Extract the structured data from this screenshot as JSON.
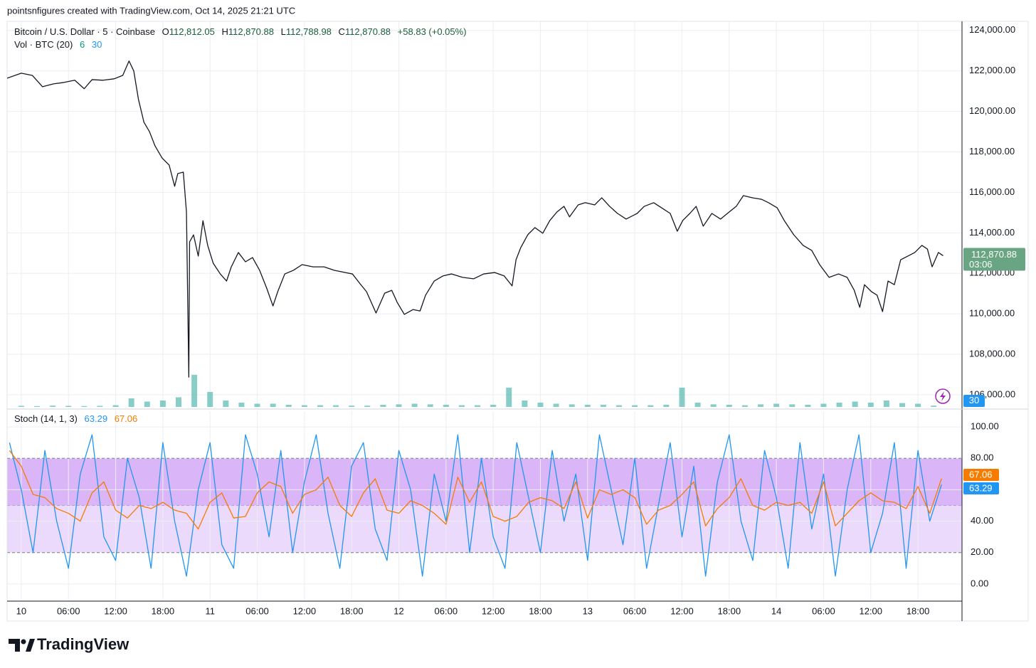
{
  "header": "pointsnfigures created with TradingView.com, Oct 14, 2025 21:21 UTC",
  "footer_logo": "TradingView",
  "chart_data": {
    "type": "line",
    "x": [
      -1.8,
      0,
      1.4,
      2.7,
      4.1,
      5.4,
      6.8,
      8.0,
      9.0,
      10.4,
      11.8,
      12.9,
      13.7,
      14.3,
      14.9,
      15.6,
      16.3,
      17.0,
      17.9,
      18.8,
      19.5,
      19.9,
      20.6,
      21.0,
      21.3,
      21.4,
      21.9,
      22.5,
      23.1,
      23.7,
      24.4,
      25.3,
      26.1,
      26.7,
      27.6,
      28.5,
      29.4,
      30.3,
      31.2,
      32.0,
      32.6,
      33.5,
      34.6,
      35.7,
      37.1,
      38.5,
      39.8,
      41.2,
      42.1,
      43.0,
      43.9,
      45.1,
      46.2,
      47.1,
      47.8,
      48.7,
      49.8,
      50.7,
      51.4,
      52.5,
      53.6,
      54.7,
      56.1,
      57.5,
      58.8,
      60.2,
      61.4,
      62.4,
      62.9,
      63.5,
      64.4,
      65.3,
      66.3,
      67.2,
      68.1,
      69.0,
      69.7,
      70.8,
      71.7,
      72.9,
      73.8,
      74.8,
      75.8,
      76.9,
      78.3,
      79.2,
      80.4,
      81.4,
      82.5,
      83.4,
      84.1,
      85.0,
      85.8,
      86.7,
      87.8,
      88.9,
      90.0,
      90.9,
      91.8,
      93.0,
      94.1,
      95.0,
      96.1,
      97.0,
      98.2,
      99.4,
      100.5,
      101.5,
      102.7,
      103.9,
      105.0,
      105.9,
      106.6,
      107.2,
      108.1,
      108.8,
      109.5,
      110.2,
      111.0,
      111.8,
      112.7,
      113.6,
      114.5,
      115.2,
      115.8,
      116.6,
      117.2
    ],
    "xlim": [
      -1.8,
      119.6
    ],
    "xticks": [
      {
        "value": 0,
        "label": "10"
      },
      {
        "value": 6,
        "label": "06:00"
      },
      {
        "value": 12,
        "label": "12:00"
      },
      {
        "value": 18,
        "label": "18:00"
      },
      {
        "value": 24,
        "label": "11"
      },
      {
        "value": 30,
        "label": "06:00"
      },
      {
        "value": 36,
        "label": "12:00"
      },
      {
        "value": 42,
        "label": "18:00"
      },
      {
        "value": 48,
        "label": "12"
      },
      {
        "value": 54,
        "label": "06:00"
      },
      {
        "value": 60,
        "label": "12:00"
      },
      {
        "value": 66,
        "label": "18:00"
      },
      {
        "value": 72,
        "label": "13"
      },
      {
        "value": 78,
        "label": "06:00"
      },
      {
        "value": 84,
        "label": "12:00"
      },
      {
        "value": 90,
        "label": "18:00"
      },
      {
        "value": 96,
        "label": "14"
      },
      {
        "value": 102,
        "label": "06:00"
      },
      {
        "value": 108,
        "label": "12:00"
      },
      {
        "value": 114,
        "label": "18:00"
      }
    ],
    "series": [
      {
        "name": "Bitcoin / U.S. Dollar · 5 · Coinbase",
        "color": "#131722",
        "values": [
          121640,
          121890,
          121780,
          121220,
          121360,
          121430,
          121540,
          121120,
          121570,
          121540,
          121610,
          121780,
          122490,
          122000,
          120590,
          119460,
          119000,
          118300,
          117700,
          117350,
          116300,
          116930,
          117000,
          115030,
          106870,
          113550,
          113900,
          112850,
          114600,
          113380,
          112500,
          111970,
          111620,
          112320,
          113030,
          112570,
          112780,
          112150,
          111270,
          110390,
          111090,
          111970,
          112150,
          112430,
          112320,
          112320,
          112150,
          112040,
          111970,
          111520,
          111090,
          110040,
          111020,
          111160,
          110560,
          109970,
          110210,
          110140,
          110920,
          111620,
          111870,
          111970,
          111800,
          111730,
          111970,
          112040,
          111870,
          111380,
          112670,
          113270,
          113910,
          114260,
          113980,
          114610,
          115030,
          115310,
          114790,
          115380,
          115490,
          115380,
          115730,
          115310,
          114960,
          114680,
          114960,
          115310,
          115490,
          115240,
          114960,
          114080,
          114610,
          114960,
          115310,
          114330,
          114960,
          114680,
          115030,
          115310,
          115840,
          115730,
          115660,
          115490,
          115240,
          114610,
          113910,
          113380,
          113130,
          112430,
          111800,
          111970,
          111800,
          111160,
          110320,
          111440,
          111090,
          110920,
          110110,
          111620,
          111440,
          112670,
          112850,
          113030,
          113380,
          113200,
          112320,
          113030,
          112870.88
        ]
      }
    ],
    "ylim": [
      105400,
      124450
    ],
    "yticks": [
      {
        "value": 106000,
        "label": "106,000.00"
      },
      {
        "value": 108000,
        "label": "108,000.00"
      },
      {
        "value": 110000,
        "label": "110,000.00"
      },
      {
        "value": 112000,
        "label": "112,000.00"
      },
      {
        "value": 114000,
        "label": "114,000.00"
      },
      {
        "value": 116000,
        "label": "116,000.00"
      },
      {
        "value": 118000,
        "label": "118,000.00"
      },
      {
        "value": 120000,
        "label": "120,000.00"
      },
      {
        "value": 122000,
        "label": "122,000.00"
      },
      {
        "value": 124000,
        "label": "124,000.00"
      }
    ],
    "grid": true,
    "ohlc": [
      [
        "O",
        "112,812.05"
      ],
      [
        "H",
        "112,870.88"
      ],
      [
        "L",
        "112,788.98"
      ],
      [
        "C",
        "112,870.88"
      ]
    ],
    "change": "+58.83 (+0.05%)",
    "countdown": "03:06",
    "last_price_color": "#6aa583",
    "volume": {
      "name": "Vol · BTC (20)",
      "type": "bar",
      "x": [
        0,
        2,
        4,
        6,
        8,
        10,
        12,
        14,
        16,
        18,
        20,
        22,
        24,
        26,
        28,
        30,
        32,
        34,
        36,
        38,
        40,
        42,
        44,
        46,
        48,
        50,
        52,
        54,
        56,
        58,
        60,
        62,
        64,
        66,
        68,
        70,
        72,
        74,
        76,
        78,
        80,
        82,
        84,
        86,
        88,
        90,
        92,
        94,
        96,
        98,
        100,
        102,
        104,
        106,
        108,
        110,
        112,
        114,
        116
      ],
      "values": [
        5,
        4,
        6,
        5,
        4,
        5,
        8,
        40,
        25,
        30,
        45,
        150,
        70,
        30,
        20,
        15,
        15,
        10,
        8,
        8,
        8,
        6,
        6,
        10,
        12,
        15,
        12,
        10,
        8,
        8,
        10,
        90,
        30,
        20,
        15,
        12,
        10,
        10,
        8,
        8,
        8,
        10,
        90,
        20,
        12,
        10,
        8,
        12,
        15,
        12,
        10,
        15,
        20,
        25,
        20,
        30,
        18,
        15,
        6
      ],
      "color": "#26a69a",
      "ylim": [
        0,
        1800
      ],
      "ma": 30,
      "ma_color": "#2196f3"
    },
    "stoch": {
      "name": "Stoch (14, 1, 3)",
      "type": "line",
      "x": [
        -1.5,
        0,
        1.5,
        3,
        4.5,
        6,
        7.5,
        9,
        10.5,
        12,
        13.5,
        15,
        16.5,
        18,
        19.5,
        21,
        22.5,
        24,
        25.5,
        27,
        28.5,
        30,
        31.5,
        33,
        34.5,
        36,
        37.5,
        39,
        40.5,
        42,
        43.5,
        45,
        46.5,
        48,
        49.5,
        51,
        52.5,
        54,
        55.5,
        57,
        58.5,
        60,
        61.5,
        63,
        64.5,
        66,
        67.5,
        69,
        70.5,
        72,
        73.5,
        75,
        76.5,
        78,
        79.5,
        81,
        82.5,
        84,
        85.5,
        87,
        88.5,
        90,
        91.5,
        93,
        94.5,
        96,
        97.5,
        99,
        100.5,
        102,
        103.5,
        105,
        106.5,
        108,
        109.5,
        111,
        112.5,
        114,
        115.5,
        117
      ],
      "ylim": [
        -10.9,
        110
      ],
      "yticks": [
        {
          "value": 0,
          "label": "0.00"
        },
        {
          "value": 20,
          "label": "20.00"
        },
        {
          "value": 40,
          "label": "40.00"
        },
        {
          "value": 60,
          "label": "60.00"
        },
        {
          "value": 80,
          "label": "80.00"
        },
        {
          "value": 100,
          "label": "100.00"
        }
      ],
      "series": [
        {
          "color": "#2196f3",
          "values": [
            90,
            60,
            20,
            85,
            40,
            10,
            70,
            95,
            30,
            15,
            80,
            55,
            10,
            90,
            40,
            5,
            60,
            90,
            25,
            10,
            95,
            70,
            30,
            85,
            20,
            65,
            95,
            45,
            10,
            75,
            90,
            35,
            15,
            85,
            60,
            5,
            70,
            40,
            95,
            20,
            80,
            30,
            10,
            90,
            55,
            20,
            85,
            40,
            70,
            15,
            95,
            60,
            25,
            80,
            10,
            50,
            90,
            30,
            75,
            5,
            65,
            95,
            40,
            15,
            85,
            55,
            10,
            90,
            35,
            70,
            5,
            60,
            95,
            20,
            45,
            90,
            10,
            85,
            40,
            63.29
          ]
        },
        {
          "color": "#f57c00",
          "values": [
            85,
            75,
            57,
            55,
            48,
            45,
            40,
            58,
            65,
            47,
            42,
            50,
            48,
            52,
            47,
            45,
            35,
            52,
            58,
            42,
            43,
            58,
            65,
            62,
            45,
            57,
            60,
            68,
            50,
            43,
            58,
            67,
            47,
            45,
            53,
            50,
            45,
            38,
            68,
            52,
            65,
            43,
            40,
            43,
            52,
            55,
            53,
            48,
            65,
            42,
            60,
            57,
            60,
            55,
            38,
            47,
            50,
            57,
            65,
            37,
            48,
            55,
            67,
            50,
            47,
            52,
            50,
            52,
            45,
            65,
            37,
            45,
            53,
            58,
            53,
            52,
            48,
            62,
            45,
            67.06
          ]
        }
      ],
      "bands": [
        80,
        50,
        20
      ],
      "band_colors": [
        "#dab6f8",
        "#ecdafc"
      ]
    }
  }
}
